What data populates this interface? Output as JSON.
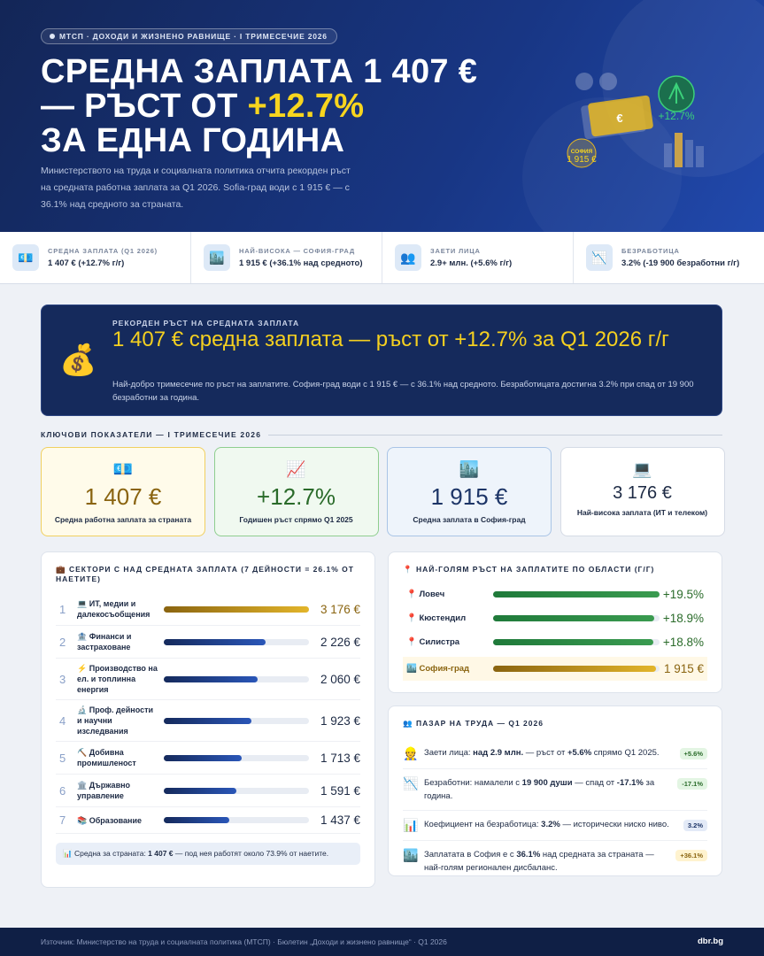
{
  "header": {
    "tag": "МТСП · ДОХОДИ И ЖИЗНЕНО РАВНИЩЕ · I ТРИМЕСЕЧИЕ 2026",
    "title_line1": "СРЕДНА ЗАПЛАТА 1 407 €",
    "title_line2": "— РЪСТ ОТ ",
    "title_highlight": "+12.7%",
    "title_line3": "ЗА ЕДНА ГОДИНА",
    "lead": "Министерството на труда и социалната политика отчита рекорден ръст на средната работна заплата за Q1 2026. Sofia-град води с 1 915 € — с 36.1% над средното за страната.",
    "illustration": {
      "currency": "€",
      "growth": "+12.7%",
      "city": "СОФИЯ",
      "city_value": "1 915 €"
    }
  },
  "stats": [
    {
      "label": "СРЕДНА ЗАПЛАТА (Q1 2026)",
      "value": "1 407 € (+12.7% г/г)"
    },
    {
      "label": "НАЙ-ВИСОКА — СОФИЯ-ГРАД",
      "value": "1 915 € (+36.1% над средното)"
    },
    {
      "label": "ЗАЕТИ ЛИЦА",
      "value": "2.9+ млн. (+5.6% г/г)"
    },
    {
      "label": "БЕЗРАБОТИЦА",
      "value": "3.2% (-19 900 безработни г/г)"
    }
  ],
  "banner": {
    "kicker": "РЕКОРДЕН РЪСТ НА СРЕДНАТА ЗАПЛАТА",
    "headline": "1 407 € средна заплата — ръст от +12.7% за Q1 2026 г/г",
    "text": "Най-добро тримесечие по ръст на заплатите. София-град води с 1 915 € — с 36.1% над средното. Безработицата достигна 3.2% при спад от 19 900 безработни за година."
  },
  "kpi": {
    "title": "КЛЮЧОВИ ПОКАЗАТЕЛИ — I ТРИМЕСЕЧИЕ 2026",
    "cards": [
      {
        "value": "1 407 €",
        "label": "Средна работна заплата за страната"
      },
      {
        "value": "+12.7%",
        "label": "Годишен ръст спрямо Q1 2025"
      },
      {
        "value": "1 915 €",
        "label": "Средна заплата в София-град"
      },
      {
        "value": "3 176 €",
        "label": "Най-висока заплата (ИТ и телеком)"
      }
    ]
  },
  "sectors": {
    "title": "СЕКТОРИ С НАД СРЕДНАТА ЗАПЛАТА (7 ДЕЙНОСТИ = 26.1% ОТ НАЕТИТЕ)",
    "rows": [
      {
        "rank": 1,
        "name": "ИТ, медии и далекосъобщения",
        "value": {
          "value": 3176,
          "label": "3 176 €"
        }
      },
      {
        "rank": 2,
        "name": "Финанси и застраховане",
        "value": {
          "value": 2226,
          "label": "2 226 €"
        }
      },
      {
        "rank": 3,
        "name": "Производство на ел. и топлинна енергия",
        "value": {
          "value": 2060,
          "label": "2 060 €"
        }
      },
      {
        "rank": 4,
        "name": "Проф. дейности и научни изследвания",
        "value": {
          "value": 1923,
          "label": "1 923 €"
        }
      },
      {
        "rank": 5,
        "name": "Добивна промишленост",
        "value": {
          "value": 1713,
          "label": "1 713 €"
        }
      },
      {
        "rank": 6,
        "name": "Държавно управление",
        "value": {
          "value": 1591,
          "label": "1 591 €"
        }
      },
      {
        "rank": 7,
        "name": "Образование",
        "value": {
          "value": 1437,
          "label": "1 437 €"
        }
      }
    ],
    "note": [
      {
        "t": "Средна за страната: "
      },
      {
        "t": "1 407 €",
        "b": true
      },
      {
        "t": " — под нея работят около 73.9% от наетите."
      }
    ]
  },
  "regions": {
    "title": "НАЙ-ГОЛЯМ РЪСТ НА ЗАПЛАТИТЕ ПО ОБЛАСТИ (Г/Г)",
    "rows": [
      {
        "name": "Ловеч",
        "value": {
          "value": 19.5,
          "label": "+19.5%"
        }
      },
      {
        "name": "Кюстендил",
        "value": {
          "value": 18.9,
          "label": "+18.9%"
        }
      },
      {
        "name": "Силистра",
        "value": {
          "value": 18.8,
          "label": "+18.8%"
        }
      },
      {
        "name": "София-град",
        "value": {
          "value": 1915,
          "label": "1 915 €"
        },
        "highlight": true
      }
    ]
  },
  "market": {
    "title": "ПАЗАР НА ТРУДА — Q1 2026",
    "items": [
      {
        "parts": [
          {
            "t": "Заети лица: "
          },
          {
            "t": "над 2.9 млн.",
            "b": true
          },
          {
            "t": " — ръст от "
          },
          {
            "t": "+5.6%",
            "b": true
          },
          {
            "t": " спрямо Q1 2025."
          }
        ],
        "badge": "+5.6%",
        "tone": "green"
      },
      {
        "parts": [
          {
            "t": "Безработни: намалели с "
          },
          {
            "t": "19 900 души",
            "b": true
          },
          {
            "t": " — спад от "
          },
          {
            "t": "-17.1%",
            "b": true
          },
          {
            "t": " за година."
          }
        ],
        "badge": "-17.1%",
        "tone": "green"
      },
      {
        "parts": [
          {
            "t": "Коефициент на безработица: "
          },
          {
            "t": "3.2%",
            "b": true
          },
          {
            "t": " — исторически ниско ниво."
          }
        ],
        "badge": "3.2%",
        "tone": "blue"
      },
      {
        "parts": [
          {
            "t": "Заплатата в София е с "
          },
          {
            "t": "36.1%",
            "b": true
          },
          {
            "t": " над средната за страната — най-голям регионален дисбаланс."
          }
        ],
        "badge": "+36.1%",
        "tone": "gold"
      }
    ]
  },
  "footer": {
    "source": "Източник: Министерство на труда и социалната политика (МТСП) · Бюлетин „Доходи и жизнено равнище“ · Q1 2026",
    "brand": "dbr.bg"
  }
}
